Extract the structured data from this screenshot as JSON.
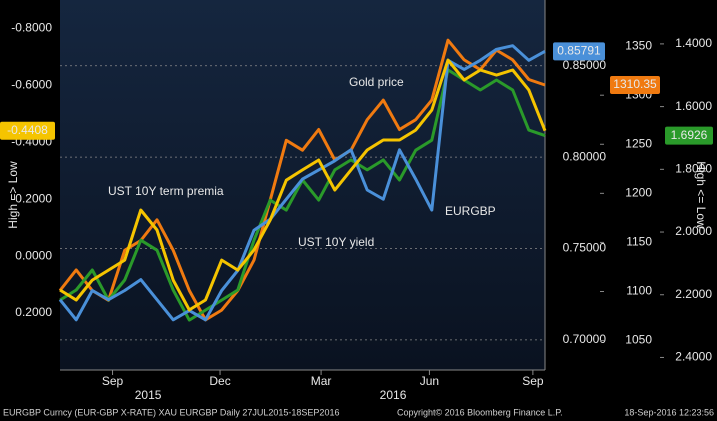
{
  "chart_data": {
    "type": "line",
    "x": [
      0,
      2,
      4,
      6,
      8,
      10,
      12,
      14,
      16,
      18,
      20,
      22,
      24,
      26,
      28,
      30,
      32,
      34,
      36,
      38,
      40,
      42,
      44,
      46,
      48,
      50,
      52,
      54,
      56,
      58,
      60
    ],
    "xlim": [
      0,
      60
    ],
    "xticks": [
      {
        "value": 6.5,
        "label": "Sep"
      },
      {
        "value": 19.8,
        "label": "Dec"
      },
      {
        "value": 32.3,
        "label": "Mar"
      },
      {
        "value": 45.7,
        "label": "Jun"
      },
      {
        "value": 58.5,
        "label": "Sep"
      }
    ],
    "x_year_labels": [
      {
        "value": 10.9,
        "label": "2015"
      },
      {
        "value": 41.2,
        "label": "2016"
      }
    ],
    "axes": [
      {
        "side": "left",
        "label": "High => Low",
        "ylim": [
          0.4,
          -0.9
        ],
        "yticks": [
          {
            "value": -0.8,
            "label": "-0.8000"
          },
          {
            "value": -0.6,
            "label": "-0.6000"
          },
          {
            "value": -0.4,
            "label": "-0.4000"
          },
          {
            "value": -0.2,
            "label": "-0.2000"
          },
          {
            "value": 0,
            "label": "0.0000"
          },
          {
            "value": 0.2,
            "label": "0.2000"
          }
        ]
      },
      {
        "side": "right",
        "ylim": [
          0.6835,
          0.886
        ],
        "grid": true,
        "yticks": [
          {
            "value": 0.7,
            "label": "0.70000"
          },
          {
            "value": 0.75,
            "label": "0.75000"
          },
          {
            "value": 0.8,
            "label": "0.80000"
          },
          {
            "value": 0.85,
            "label": "0.85000"
          }
        ]
      },
      {
        "side": "right",
        "ylim": [
          1020,
          1397
        ],
        "yticks": [
          1050,
          1100,
          1150,
          1200,
          1250,
          1300,
          1350
        ]
      },
      {
        "side": "right",
        "label": "High <= Low",
        "ylim": [
          2.44,
          1.26
        ],
        "yticks": [
          {
            "value": 1.4,
            "label": "1.4000"
          },
          {
            "value": 1.6,
            "label": "1.6000"
          },
          {
            "value": 1.8,
            "label": "1.8000"
          },
          {
            "value": 2.0,
            "label": "2.0000"
          },
          {
            "value": 2.2,
            "label": "2.2000"
          },
          {
            "value": 2.4,
            "label": "2.4000"
          }
        ]
      }
    ],
    "series": [
      {
        "name": "Gold price",
        "color": "#f07a10",
        "axis": 2,
        "values": [
          1101,
          1122,
          1101,
          1091,
          1142,
          1152,
          1173,
          1142,
          1101,
          1071,
          1081,
          1101,
          1132,
          1193,
          1254,
          1244,
          1265,
          1234,
          1244,
          1275,
          1295,
          1265,
          1275,
          1295,
          1356,
          1336,
          1326,
          1346,
          1336,
          1316,
          1310.35
        ],
        "value_labels": [
          null,
          null,
          null,
          null,
          null,
          null,
          null,
          null,
          null,
          null,
          null,
          null,
          null,
          null,
          null,
          null,
          null,
          null,
          null,
          null,
          null,
          null,
          null,
          null,
          null,
          null,
          null,
          null,
          null,
          null,
          "1310.35"
        ]
      },
      {
        "name": "UST 10Y yield",
        "color": "#2a9a2a",
        "axis": 3,
        "values": [
          2.217,
          2.185,
          2.121,
          2.217,
          2.153,
          2.026,
          2.058,
          2.185,
          2.281,
          2.249,
          2.217,
          2.185,
          2.026,
          1.898,
          1.93,
          1.834,
          1.898,
          1.802,
          1.77,
          1.802,
          1.77,
          1.834,
          1.739,
          1.707,
          1.483,
          1.515,
          1.547,
          1.515,
          1.547,
          1.675,
          1.6926
        ],
        "value_labels": [
          null,
          null,
          null,
          null,
          null,
          null,
          null,
          null,
          null,
          null,
          null,
          null,
          null,
          null,
          null,
          null,
          null,
          null,
          null,
          null,
          null,
          null,
          null,
          null,
          null,
          null,
          null,
          null,
          null,
          null,
          "1.6926"
        ]
      },
      {
        "name": "EURGBP",
        "color": "#4a90d9",
        "axis": 1,
        "values": [
          0.722,
          0.711,
          0.727,
          0.722,
          0.727,
          0.733,
          0.722,
          0.711,
          0.716,
          0.711,
          0.727,
          0.738,
          0.76,
          0.766,
          0.777,
          0.788,
          0.793,
          0.798,
          0.804,
          0.782,
          0.777,
          0.804,
          0.788,
          0.771,
          0.853,
          0.848,
          0.853,
          0.859,
          0.861,
          0.853,
          0.85791
        ],
        "value_labels": [
          null,
          null,
          null,
          null,
          null,
          null,
          null,
          null,
          null,
          null,
          null,
          null,
          null,
          null,
          null,
          null,
          null,
          null,
          null,
          null,
          null,
          null,
          null,
          null,
          null,
          null,
          null,
          null,
          null,
          null,
          "0.85791"
        ]
      },
      {
        "name": "UST 10Y term premia",
        "color": "#f5c400",
        "axis": 0,
        "values": [
          0.119,
          0.154,
          0.084,
          0.049,
          0.014,
          -0.162,
          -0.092,
          0.084,
          0.189,
          0.154,
          0.014,
          0.049,
          -0.022,
          -0.127,
          -0.267,
          -0.303,
          -0.338,
          -0.232,
          -0.303,
          -0.373,
          -0.408,
          -0.408,
          -0.443,
          -0.513,
          -0.689,
          -0.619,
          -0.654,
          -0.636,
          -0.654,
          -0.584,
          -0.4408
        ],
        "value_labels": [
          null,
          null,
          null,
          null,
          null,
          null,
          null,
          null,
          null,
          null,
          null,
          null,
          null,
          null,
          null,
          null,
          null,
          null,
          null,
          null,
          null,
          null,
          null,
          null,
          null,
          null,
          null,
          null,
          null,
          null,
          "-0.4408"
        ]
      }
    ],
    "footer": {
      "left": "EURGBP Curncy (EUR-GBP X-RATE) XAU EURGBP  Daily 27JUL2015-18SEP2016",
      "center": "Copyright© 2016 Bloomberg Finance L.P.",
      "right": "18-Sep-2016 12:23:56"
    }
  }
}
